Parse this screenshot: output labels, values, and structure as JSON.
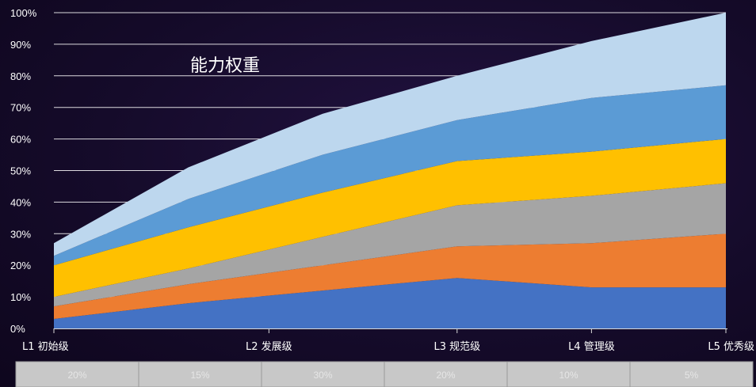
{
  "chart_data": {
    "type": "area",
    "stacked": true,
    "title": "能力权重",
    "categories": [
      "L1 初始级",
      "L2 发展级",
      "L3 规范级",
      "L4 管理级",
      "L5 优秀级"
    ],
    "x_positions": [
      0,
      1.6,
      3.0,
      4.0,
      5.0
    ],
    "y_ticks": [
      "0%",
      "10%",
      "20%",
      "30%",
      "40%",
      "50%",
      "60%",
      "70%",
      "80%",
      "90%",
      "100%"
    ],
    "ylim": [
      0,
      100
    ],
    "series": [
      {
        "color": "#4472c4",
        "x": [
          0,
          1,
          2,
          3,
          4,
          5
        ],
        "values": [
          3,
          8,
          12,
          16,
          13,
          13
        ]
      },
      {
        "color": "#ed7d31",
        "x": [
          0,
          1,
          2,
          3,
          4,
          5
        ],
        "values": [
          4,
          6,
          8,
          10,
          14,
          17
        ]
      },
      {
        "color": "#a5a5a5",
        "x": [
          0,
          1,
          2,
          3,
          4,
          5
        ],
        "values": [
          3,
          5,
          9,
          13,
          15,
          16
        ]
      },
      {
        "color": "#ffc000",
        "x": [
          0,
          1,
          2,
          3,
          4,
          5
        ],
        "values": [
          10,
          13,
          14,
          14,
          14,
          14
        ]
      },
      {
        "color": "#5b9bd5",
        "x": [
          0,
          1,
          2,
          3,
          4,
          5
        ],
        "values": [
          3,
          9,
          12,
          13,
          17,
          17
        ]
      },
      {
        "color": "#bdd7ee",
        "x": [
          0,
          1,
          2,
          3,
          4,
          5
        ],
        "values": [
          4,
          10,
          13,
          14,
          18,
          23
        ]
      }
    ],
    "grid": true,
    "table_row": [
      "20%",
      "15%",
      "30%",
      "20%",
      "10%",
      "5%"
    ]
  }
}
